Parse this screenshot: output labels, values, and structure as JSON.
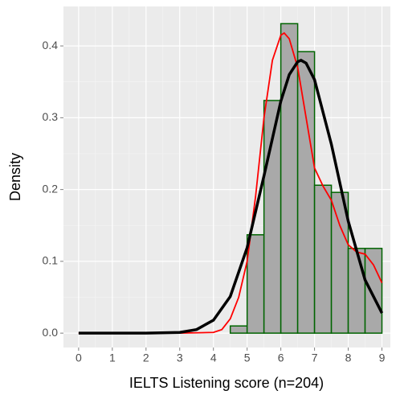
{
  "chart_data": {
    "type": "histogram",
    "xlabel": "IELTS Listening score (n=204)",
    "ylabel": "Density",
    "bins": [
      4.5,
      5,
      5.5,
      6,
      6.5,
      7,
      7.5,
      8,
      8.5,
      9
    ],
    "values": [
      0.01,
      0.137,
      0.324,
      0.431,
      0.392,
      0.206,
      0.196,
      0.118,
      0.118
    ],
    "color": "#a9a9a9",
    "edgecolor": "#006400",
    "lines": [
      {
        "color": "#ff0000",
        "width": 1.8,
        "x": [
          0,
          3,
          4,
          4.25,
          4.5,
          4.75,
          5,
          5.25,
          5.5,
          5.75,
          6,
          6.1,
          6.25,
          6.5,
          6.75,
          7,
          7.25,
          7.5,
          7.75,
          8,
          8.25,
          8.5,
          8.75,
          9
        ],
        "values": [
          0,
          0,
          0.001,
          0.005,
          0.02,
          0.05,
          0.1,
          0.19,
          0.3,
          0.38,
          0.415,
          0.418,
          0.41,
          0.37,
          0.3,
          0.23,
          0.205,
          0.185,
          0.15,
          0.123,
          0.113,
          0.11,
          0.095,
          0.07
        ]
      },
      {
        "color": "#000000",
        "width": 3.5,
        "x": [
          0,
          1,
          2,
          3,
          3.5,
          4,
          4.5,
          5,
          5.5,
          6,
          6.25,
          6.5,
          6.6,
          6.75,
          7,
          7.5,
          8,
          8.5,
          9
        ],
        "values": [
          0,
          0,
          0,
          0.001,
          0.005,
          0.018,
          0.051,
          0.119,
          0.219,
          0.323,
          0.36,
          0.378,
          0.38,
          0.376,
          0.353,
          0.263,
          0.156,
          0.074,
          0.028
        ]
      }
    ],
    "xlim": [
      -0.45,
      9.25
    ],
    "ylim": [
      -0.02,
      0.455
    ],
    "xticks": [
      0,
      1,
      2,
      3,
      4,
      5,
      6,
      7,
      8,
      9
    ],
    "yticks": [
      {
        "value": 0,
        "label": "0.0"
      },
      0.1,
      0.2,
      0.3,
      0.4
    ],
    "grid": true
  }
}
